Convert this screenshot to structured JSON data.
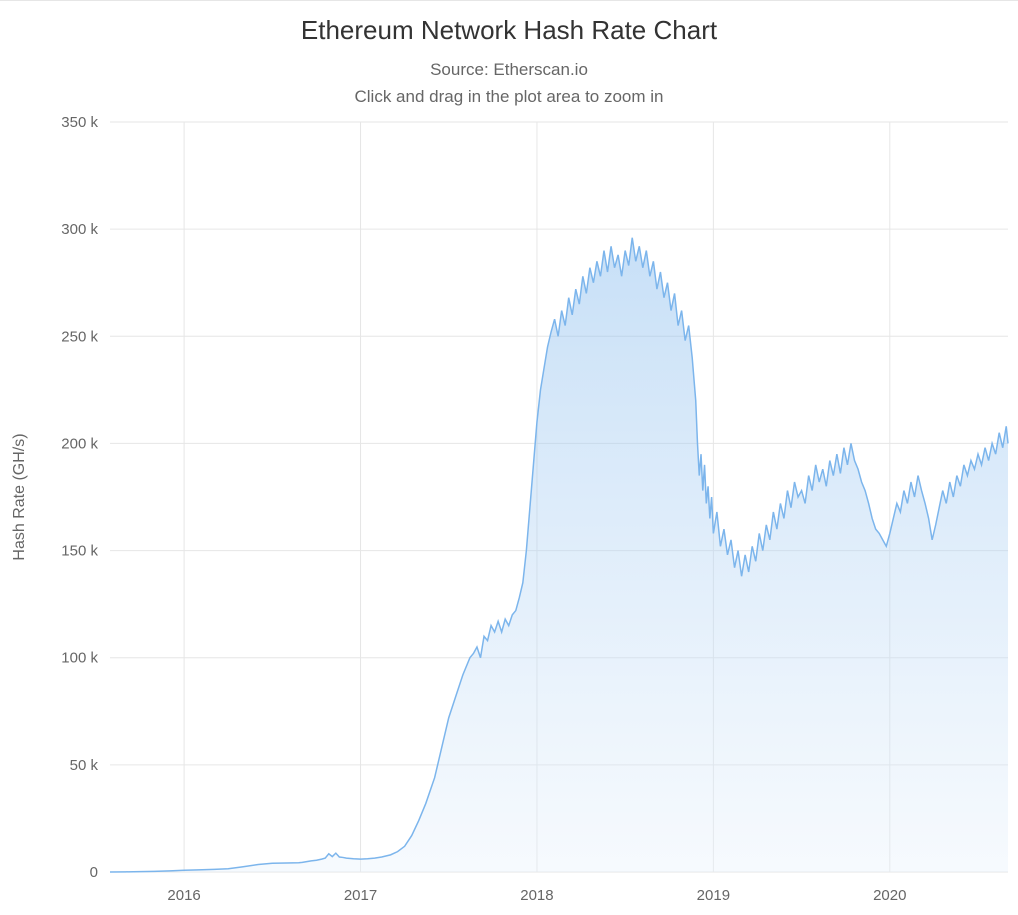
{
  "chart": {
    "type": "area",
    "title": "Ethereum Network Hash Rate Chart",
    "subtitle_line1": "Source: Etherscan.io",
    "subtitle_line2": "Click and drag in the plot area to zoom in",
    "ylabel": "Hash Rate (GH/s)",
    "y_ticks": [
      0,
      50,
      100,
      150,
      200,
      250,
      300,
      350
    ],
    "y_tick_labels": [
      "0",
      "50 k",
      "100 k",
      "150 k",
      "200 k",
      "250 k",
      "300 k",
      "350 k"
    ],
    "ylim": [
      0,
      350
    ],
    "x_years": [
      2016,
      2017,
      2018,
      2019,
      2020
    ],
    "x_year_labels": [
      "2016",
      "2017",
      "2018",
      "2019",
      "2020"
    ],
    "x_range": [
      2015.58,
      2020.67
    ],
    "background_color": "#ffffff",
    "grid_color": "#e6e6e6",
    "line_color": "#7cb5ec",
    "area_top_color": "#7cb5ec",
    "area_bottom_color": "#e7f1fb",
    "title_fontsize": 26,
    "subtitle_fontsize": 17,
    "axis_label_fontsize": 16,
    "tick_fontsize": 15,
    "series": [
      [
        2015.58,
        0.03
      ],
      [
        2015.67,
        0.08
      ],
      [
        2015.75,
        0.15
      ],
      [
        2015.83,
        0.3
      ],
      [
        2015.92,
        0.5
      ],
      [
        2016.0,
        0.8
      ],
      [
        2016.08,
        1.0
      ],
      [
        2016.17,
        1.2
      ],
      [
        2016.25,
        1.5
      ],
      [
        2016.33,
        2.4
      ],
      [
        2016.42,
        3.5
      ],
      [
        2016.5,
        4.1
      ],
      [
        2016.58,
        4.2
      ],
      [
        2016.65,
        4.3
      ],
      [
        2016.67,
        4.5
      ],
      [
        2016.72,
        5.2
      ],
      [
        2016.75,
        5.5
      ],
      [
        2016.78,
        6.0
      ],
      [
        2016.8,
        6.5
      ],
      [
        2016.82,
        8.5
      ],
      [
        2016.84,
        7.2
      ],
      [
        2016.86,
        8.8
      ],
      [
        2016.88,
        7.0
      ],
      [
        2016.9,
        6.8
      ],
      [
        2016.92,
        6.5
      ],
      [
        2016.96,
        6.2
      ],
      [
        2017.0,
        6.0
      ],
      [
        2017.04,
        6.2
      ],
      [
        2017.08,
        6.5
      ],
      [
        2017.12,
        7.0
      ],
      [
        2017.17,
        8.0
      ],
      [
        2017.21,
        9.5
      ],
      [
        2017.25,
        12.0
      ],
      [
        2017.29,
        17.0
      ],
      [
        2017.33,
        24.0
      ],
      [
        2017.37,
        32.0
      ],
      [
        2017.42,
        44.0
      ],
      [
        2017.46,
        58.0
      ],
      [
        2017.5,
        72.0
      ],
      [
        2017.54,
        82.0
      ],
      [
        2017.58,
        92.0
      ],
      [
        2017.62,
        100.0
      ],
      [
        2017.64,
        102.0
      ],
      [
        2017.66,
        105.0
      ],
      [
        2017.68,
        100.0
      ],
      [
        2017.7,
        110.0
      ],
      [
        2017.72,
        108.0
      ],
      [
        2017.74,
        115.0
      ],
      [
        2017.76,
        112.0
      ],
      [
        2017.78,
        117.0
      ],
      [
        2017.8,
        112.0
      ],
      [
        2017.82,
        118.0
      ],
      [
        2017.84,
        115.0
      ],
      [
        2017.86,
        120.0
      ],
      [
        2017.88,
        122.0
      ],
      [
        2017.9,
        128.0
      ],
      [
        2017.92,
        135.0
      ],
      [
        2017.94,
        150.0
      ],
      [
        2017.96,
        170.0
      ],
      [
        2017.98,
        190.0
      ],
      [
        2018.0,
        210.0
      ],
      [
        2018.02,
        225.0
      ],
      [
        2018.04,
        235.0
      ],
      [
        2018.06,
        245.0
      ],
      [
        2018.08,
        252.0
      ],
      [
        2018.1,
        258.0
      ],
      [
        2018.12,
        250.0
      ],
      [
        2018.14,
        262.0
      ],
      [
        2018.16,
        255.0
      ],
      [
        2018.18,
        268.0
      ],
      [
        2018.2,
        260.0
      ],
      [
        2018.22,
        272.0
      ],
      [
        2018.24,
        265.0
      ],
      [
        2018.26,
        278.0
      ],
      [
        2018.28,
        270.0
      ],
      [
        2018.3,
        282.0
      ],
      [
        2018.32,
        275.0
      ],
      [
        2018.34,
        285.0
      ],
      [
        2018.36,
        278.0
      ],
      [
        2018.38,
        290.0
      ],
      [
        2018.4,
        280.0
      ],
      [
        2018.42,
        292.0
      ],
      [
        2018.44,
        282.0
      ],
      [
        2018.46,
        288.0
      ],
      [
        2018.48,
        278.0
      ],
      [
        2018.5,
        290.0
      ],
      [
        2018.52,
        283.0
      ],
      [
        2018.54,
        296.0
      ],
      [
        2018.56,
        285.0
      ],
      [
        2018.58,
        292.0
      ],
      [
        2018.6,
        282.0
      ],
      [
        2018.62,
        290.0
      ],
      [
        2018.64,
        278.0
      ],
      [
        2018.66,
        285.0
      ],
      [
        2018.68,
        272.0
      ],
      [
        2018.7,
        280.0
      ],
      [
        2018.72,
        268.0
      ],
      [
        2018.74,
        275.0
      ],
      [
        2018.76,
        262.0
      ],
      [
        2018.78,
        270.0
      ],
      [
        2018.8,
        255.0
      ],
      [
        2018.82,
        262.0
      ],
      [
        2018.84,
        248.0
      ],
      [
        2018.86,
        255.0
      ],
      [
        2018.88,
        240.0
      ],
      [
        2018.9,
        220.0
      ],
      [
        2018.91,
        200.0
      ],
      [
        2018.92,
        185.0
      ],
      [
        2018.93,
        195.0
      ],
      [
        2018.94,
        178.0
      ],
      [
        2018.95,
        190.0
      ],
      [
        2018.96,
        172.0
      ],
      [
        2018.97,
        180.0
      ],
      [
        2018.98,
        165.0
      ],
      [
        2018.99,
        175.0
      ],
      [
        2019.0,
        158.0
      ],
      [
        2019.02,
        168.0
      ],
      [
        2019.04,
        152.0
      ],
      [
        2019.06,
        160.0
      ],
      [
        2019.08,
        148.0
      ],
      [
        2019.1,
        155.0
      ],
      [
        2019.12,
        142.0
      ],
      [
        2019.14,
        150.0
      ],
      [
        2019.16,
        138.0
      ],
      [
        2019.18,
        148.0
      ],
      [
        2019.2,
        140.0
      ],
      [
        2019.22,
        152.0
      ],
      [
        2019.24,
        145.0
      ],
      [
        2019.26,
        158.0
      ],
      [
        2019.28,
        150.0
      ],
      [
        2019.3,
        162.0
      ],
      [
        2019.32,
        155.0
      ],
      [
        2019.34,
        168.0
      ],
      [
        2019.36,
        160.0
      ],
      [
        2019.38,
        172.0
      ],
      [
        2019.4,
        165.0
      ],
      [
        2019.42,
        178.0
      ],
      [
        2019.44,
        170.0
      ],
      [
        2019.46,
        182.0
      ],
      [
        2019.48,
        175.0
      ],
      [
        2019.5,
        178.0
      ],
      [
        2019.52,
        172.0
      ],
      [
        2019.54,
        185.0
      ],
      [
        2019.56,
        178.0
      ],
      [
        2019.58,
        190.0
      ],
      [
        2019.6,
        182.0
      ],
      [
        2019.62,
        188.0
      ],
      [
        2019.64,
        180.0
      ],
      [
        2019.66,
        192.0
      ],
      [
        2019.68,
        185.0
      ],
      [
        2019.7,
        195.0
      ],
      [
        2019.72,
        186.0
      ],
      [
        2019.74,
        198.0
      ],
      [
        2019.76,
        190.0
      ],
      [
        2019.78,
        200.0
      ],
      [
        2019.8,
        192.0
      ],
      [
        2019.82,
        188.0
      ],
      [
        2019.84,
        182.0
      ],
      [
        2019.86,
        178.0
      ],
      [
        2019.88,
        172.0
      ],
      [
        2019.9,
        165.0
      ],
      [
        2019.92,
        160.0
      ],
      [
        2019.94,
        158.0
      ],
      [
        2019.96,
        155.0
      ],
      [
        2019.98,
        152.0
      ],
      [
        2020.0,
        158.0
      ],
      [
        2020.02,
        165.0
      ],
      [
        2020.04,
        172.0
      ],
      [
        2020.06,
        168.0
      ],
      [
        2020.08,
        178.0
      ],
      [
        2020.1,
        172.0
      ],
      [
        2020.12,
        182.0
      ],
      [
        2020.14,
        175.0
      ],
      [
        2020.16,
        185.0
      ],
      [
        2020.18,
        178.0
      ],
      [
        2020.2,
        172.0
      ],
      [
        2020.22,
        165.0
      ],
      [
        2020.24,
        155.0
      ],
      [
        2020.26,
        162.0
      ],
      [
        2020.28,
        170.0
      ],
      [
        2020.3,
        178.0
      ],
      [
        2020.32,
        172.0
      ],
      [
        2020.34,
        182.0
      ],
      [
        2020.36,
        175.0
      ],
      [
        2020.38,
        185.0
      ],
      [
        2020.4,
        180.0
      ],
      [
        2020.42,
        190.0
      ],
      [
        2020.44,
        185.0
      ],
      [
        2020.46,
        192.0
      ],
      [
        2020.48,
        188.0
      ],
      [
        2020.5,
        195.0
      ],
      [
        2020.52,
        190.0
      ],
      [
        2020.54,
        198.0
      ],
      [
        2020.56,
        192.0
      ],
      [
        2020.58,
        200.0
      ],
      [
        2020.6,
        195.0
      ],
      [
        2020.62,
        205.0
      ],
      [
        2020.64,
        198.0
      ],
      [
        2020.66,
        208.0
      ],
      [
        2020.67,
        200.0
      ]
    ]
  }
}
